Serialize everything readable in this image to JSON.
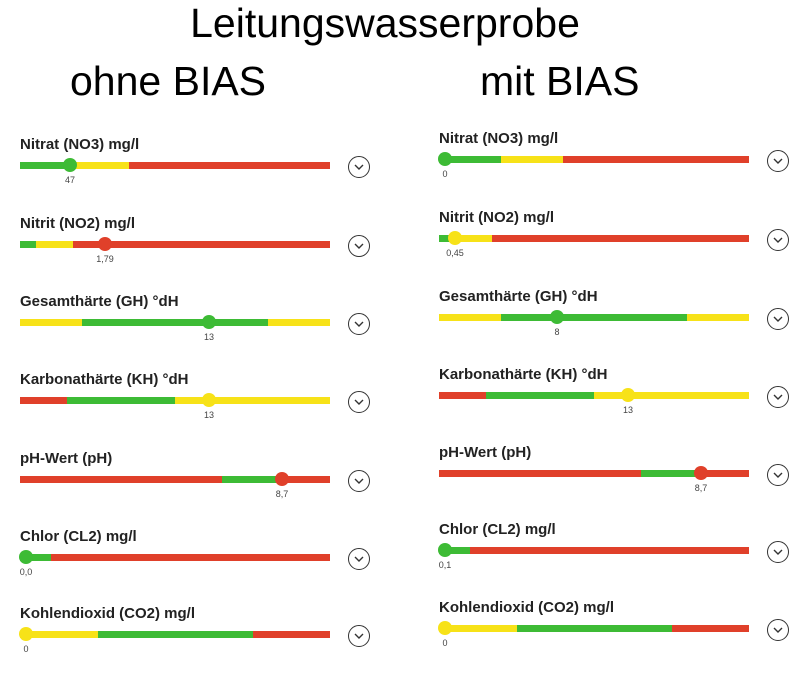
{
  "title": "Leitungswasserprobe",
  "columns": [
    {
      "heading": "ohne BIAS",
      "metrics": [
        {
          "label": "Nitrat (NO3) mg/l",
          "value": "47",
          "marker_fraction": 0.16,
          "marker_color": "#3dbb35",
          "segments": [
            {
              "fraction": 0.15,
              "color": "#3dbb35"
            },
            {
              "fraction": 0.2,
              "color": "#f7e218"
            },
            {
              "fraction": 0.65,
              "color": "#e0402a"
            }
          ]
        },
        {
          "label": "Nitrit (NO2) mg/l",
          "value": "1,79",
          "marker_fraction": 0.275,
          "marker_color": "#e0402a",
          "segments": [
            {
              "fraction": 0.05,
              "color": "#3dbb35"
            },
            {
              "fraction": 0.12,
              "color": "#f7e218"
            },
            {
              "fraction": 0.83,
              "color": "#e0402a"
            }
          ]
        },
        {
          "label": "Gesamthärte (GH) °dH",
          "value": "13",
          "marker_fraction": 0.61,
          "marker_color": "#3dbb35",
          "segments": [
            {
              "fraction": 0.2,
              "color": "#f7e218"
            },
            {
              "fraction": 0.6,
              "color": "#3dbb35"
            },
            {
              "fraction": 0.2,
              "color": "#f7e218"
            }
          ]
        },
        {
          "label": "Karbonathärte (KH) °dH",
          "value": "13",
          "marker_fraction": 0.61,
          "marker_color": "#f7e218",
          "segments": [
            {
              "fraction": 0.15,
              "color": "#e0402a"
            },
            {
              "fraction": 0.35,
              "color": "#3dbb35"
            },
            {
              "fraction": 0.5,
              "color": "#f7e218"
            }
          ]
        },
        {
          "label": "pH-Wert (pH)",
          "value": "8,7",
          "marker_fraction": 0.845,
          "marker_color": "#e0402a",
          "segments": [
            {
              "fraction": 0.65,
              "color": "#e0402a"
            },
            {
              "fraction": 0.2,
              "color": "#3dbb35"
            },
            {
              "fraction": 0.15,
              "color": "#e0402a"
            }
          ]
        },
        {
          "label": "Chlor (CL2) mg/l",
          "value": "0,0",
          "marker_fraction": 0.02,
          "marker_color": "#3dbb35",
          "segments": [
            {
              "fraction": 0.1,
              "color": "#3dbb35"
            },
            {
              "fraction": 0.9,
              "color": "#e0402a"
            }
          ]
        },
        {
          "label": "Kohlendioxid (CO2) mg/l",
          "value": "0",
          "marker_fraction": 0.02,
          "marker_color": "#f7e218",
          "segments": [
            {
              "fraction": 0.25,
              "color": "#f7e218"
            },
            {
              "fraction": 0.5,
              "color": "#3dbb35"
            },
            {
              "fraction": 0.25,
              "color": "#e0402a"
            }
          ]
        }
      ]
    },
    {
      "heading": "mit BIAS",
      "metrics": [
        {
          "label": "Nitrat (NO3) mg/l",
          "value": "0",
          "marker_fraction": 0.02,
          "marker_color": "#3dbb35",
          "segments": [
            {
              "fraction": 0.2,
              "color": "#3dbb35"
            },
            {
              "fraction": 0.2,
              "color": "#f7e218"
            },
            {
              "fraction": 0.6,
              "color": "#e0402a"
            }
          ]
        },
        {
          "label": "Nitrit (NO2) mg/l",
          "value": "0,45",
          "marker_fraction": 0.05,
          "marker_color": "#f7e218",
          "segments": [
            {
              "fraction": 0.05,
              "color": "#3dbb35"
            },
            {
              "fraction": 0.12,
              "color": "#f7e218"
            },
            {
              "fraction": 0.83,
              "color": "#e0402a"
            }
          ]
        },
        {
          "label": "Gesamthärte (GH) °dH",
          "value": "8",
          "marker_fraction": 0.38,
          "marker_color": "#3dbb35",
          "segments": [
            {
              "fraction": 0.2,
              "color": "#f7e218"
            },
            {
              "fraction": 0.6,
              "color": "#3dbb35"
            },
            {
              "fraction": 0.2,
              "color": "#f7e218"
            }
          ]
        },
        {
          "label": "Karbonathärte (KH) °dH",
          "value": "13",
          "marker_fraction": 0.61,
          "marker_color": "#f7e218",
          "segments": [
            {
              "fraction": 0.15,
              "color": "#e0402a"
            },
            {
              "fraction": 0.35,
              "color": "#3dbb35"
            },
            {
              "fraction": 0.5,
              "color": "#f7e218"
            }
          ]
        },
        {
          "label": "pH-Wert (pH)",
          "value": "8,7",
          "marker_fraction": 0.845,
          "marker_color": "#e0402a",
          "segments": [
            {
              "fraction": 0.65,
              "color": "#e0402a"
            },
            {
              "fraction": 0.2,
              "color": "#3dbb35"
            },
            {
              "fraction": 0.15,
              "color": "#e0402a"
            }
          ]
        },
        {
          "label": "Chlor (CL2) mg/l",
          "value": "0,1",
          "marker_fraction": 0.02,
          "marker_color": "#3dbb35",
          "segments": [
            {
              "fraction": 0.1,
              "color": "#3dbb35"
            },
            {
              "fraction": 0.9,
              "color": "#e0402a"
            }
          ]
        },
        {
          "label": "Kohlendioxid (CO2) mg/l",
          "value": "0",
          "marker_fraction": 0.02,
          "marker_color": "#f7e218",
          "segments": [
            {
              "fraction": 0.25,
              "color": "#f7e218"
            },
            {
              "fraction": 0.5,
              "color": "#3dbb35"
            },
            {
              "fraction": 0.25,
              "color": "#e0402a"
            }
          ]
        }
      ]
    }
  ],
  "icons": {
    "expand": "chevron-down-icon"
  }
}
